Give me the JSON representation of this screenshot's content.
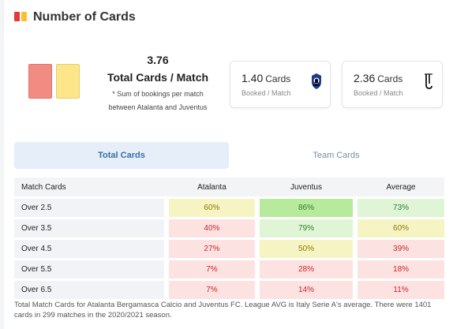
{
  "header": {
    "title": "Number of Cards",
    "icon": "red-yellow-cards-icon"
  },
  "summary": {
    "value": "3.76",
    "label": "Total Cards / Match",
    "note_line1": "* Sum of bookings per match",
    "note_line2": "between Atalanta and Juventus"
  },
  "stats": [
    {
      "value": "1.40",
      "unit": "Cards",
      "sub": "Booked / Match",
      "team_icon": "atalanta-logo-icon"
    },
    {
      "value": "2.36",
      "unit": "Cards",
      "sub": "Booked / Match",
      "team_icon": "juventus-logo-icon"
    }
  ],
  "tabs": {
    "active": "Total Cards",
    "inactive": "Team Cards"
  },
  "table": {
    "headers": [
      "Match Cards",
      "Atalanta",
      "Juventus",
      "Average"
    ],
    "rows": [
      {
        "label": "Over 2.5",
        "atalanta": "60%",
        "juventus": "86%",
        "average": "73%"
      },
      {
        "label": "Over 3.5",
        "atalanta": "40%",
        "juventus": "79%",
        "average": "60%"
      },
      {
        "label": "Over 4.5",
        "atalanta": "27%",
        "juventus": "50%",
        "average": "39%"
      },
      {
        "label": "Over 5.5",
        "atalanta": "7%",
        "juventus": "28%",
        "average": "18%"
      },
      {
        "label": "Over 6.5",
        "atalanta": "7%",
        "juventus": "14%",
        "average": "11%"
      }
    ]
  },
  "colors": {
    "red": "#fde2e2",
    "yellow": "#f7f4c4",
    "light_green": "#dff5d6",
    "green": "#b7ea9a",
    "accent": "#3a6ea5"
  },
  "footnote": "Total Match Cards for Atalanta Bergamasca Calcio and Juventus FC. League AVG is Italy Serie A's average. There were 1401 cards in 299 matches in the 2020/2021 season."
}
